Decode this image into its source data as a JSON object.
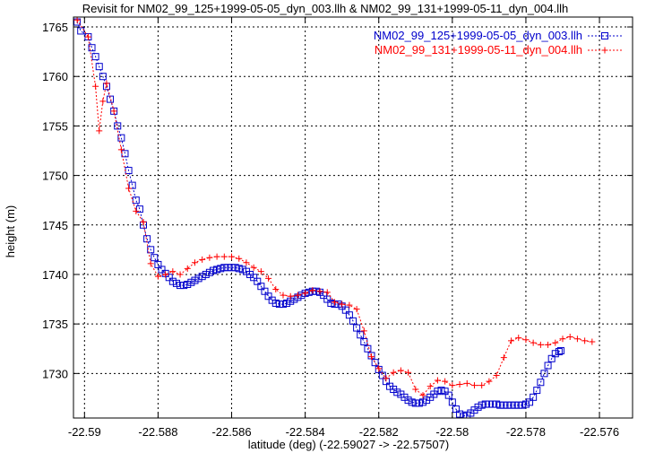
{
  "chart_data": {
    "type": "line",
    "title": "Revisit for NM02_99_125+1999-05-05_dyn_003.llh & NM02_99_131+1999-05-11_dyn_004.llh",
    "xlabel": "latitude (deg) (-22.59027 -> -22.57507)",
    "ylabel": "height (m)",
    "xlim": [
      -22.5903,
      -22.5751
    ],
    "ylim": [
      1725.5,
      1766
    ],
    "xticks": [
      -22.59,
      -22.588,
      -22.586,
      -22.584,
      -22.582,
      -22.58,
      -22.578,
      -22.576
    ],
    "xtick_labels": [
      "-22.59",
      "-22.588",
      "-22.586",
      "-22.584",
      "-22.582",
      "-22.58",
      "-22.578",
      "-22.576"
    ],
    "yticks": [
      1730,
      1735,
      1740,
      1745,
      1750,
      1755,
      1760,
      1765
    ],
    "ytick_labels": [
      "1730",
      "1735",
      "1740",
      "1745",
      "1750",
      "1755",
      "1760",
      "1765"
    ],
    "grid": true,
    "legend_position": "top-right",
    "series": [
      {
        "name": "NM02_99_125+1999-05-05_dyn_003.llh",
        "color": "#0000cc",
        "marker": "square",
        "points": [
          [
            -22.5902,
            1765.5
          ],
          [
            -22.5901,
            1764.6
          ],
          [
            -22.5899,
            1764
          ],
          [
            -22.5898,
            1762.9
          ],
          [
            -22.5897,
            1762
          ],
          [
            -22.5896,
            1761
          ],
          [
            -22.5895,
            1760
          ],
          [
            -22.5894,
            1759
          ],
          [
            -22.5893,
            1757.7
          ],
          [
            -22.5892,
            1756.5
          ],
          [
            -22.5891,
            1755
          ],
          [
            -22.589,
            1753.8
          ],
          [
            -22.5889,
            1752.2
          ],
          [
            -22.5888,
            1750.5
          ],
          [
            -22.5887,
            1749
          ],
          [
            -22.5886,
            1747.5
          ],
          [
            -22.5885,
            1746.6
          ],
          [
            -22.5884,
            1745
          ],
          [
            -22.5883,
            1743.6
          ],
          [
            -22.5882,
            1742.5
          ],
          [
            -22.5881,
            1741.7
          ],
          [
            -22.588,
            1741
          ],
          [
            -22.5879,
            1740.5
          ],
          [
            -22.5878,
            1740.1
          ],
          [
            -22.5877,
            1739.7
          ],
          [
            -22.5876,
            1739.3
          ],
          [
            -22.5875,
            1739.1
          ],
          [
            -22.5874,
            1738.9
          ],
          [
            -22.5873,
            1738.9
          ],
          [
            -22.5872,
            1739
          ],
          [
            -22.5871,
            1739.2
          ],
          [
            -22.587,
            1739.4
          ],
          [
            -22.5869,
            1739.6
          ],
          [
            -22.5868,
            1739.8
          ],
          [
            -22.5867,
            1740
          ],
          [
            -22.5866,
            1740.2
          ],
          [
            -22.5865,
            1740.4
          ],
          [
            -22.5864,
            1740.5
          ],
          [
            -22.5863,
            1740.6
          ],
          [
            -22.5862,
            1740.7
          ],
          [
            -22.5861,
            1740.7
          ],
          [
            -22.586,
            1740.7
          ],
          [
            -22.5859,
            1740.7
          ],
          [
            -22.5858,
            1740.6
          ],
          [
            -22.5857,
            1740.5
          ],
          [
            -22.5856,
            1740.3
          ],
          [
            -22.5855,
            1740
          ],
          [
            -22.5854,
            1739.7
          ],
          [
            -22.5853,
            1739.3
          ],
          [
            -22.5852,
            1738.8
          ],
          [
            -22.5851,
            1738.3
          ],
          [
            -22.585,
            1737.8
          ],
          [
            -22.5849,
            1737.4
          ],
          [
            -22.5848,
            1737.1
          ],
          [
            -22.5847,
            1737
          ],
          [
            -22.5846,
            1737
          ],
          [
            -22.5845,
            1737.1
          ],
          [
            -22.5844,
            1737.3
          ],
          [
            -22.5843,
            1737.5
          ],
          [
            -22.5842,
            1737.7
          ],
          [
            -22.5841,
            1737.9
          ],
          [
            -22.584,
            1738.1
          ],
          [
            -22.5839,
            1738.2
          ],
          [
            -22.5838,
            1738.3
          ],
          [
            -22.5837,
            1738.3
          ],
          [
            -22.5836,
            1738.2
          ],
          [
            -22.5835,
            1737.9
          ],
          [
            -22.5834,
            1737.5
          ],
          [
            -22.5833,
            1737.1
          ],
          [
            -22.5832,
            1737
          ],
          [
            -22.5831,
            1737
          ],
          [
            -22.583,
            1736.8
          ],
          [
            -22.5829,
            1736.4
          ],
          [
            -22.5828,
            1735.9
          ],
          [
            -22.5827,
            1735.3
          ],
          [
            -22.5826,
            1734.6
          ],
          [
            -22.5825,
            1733.9
          ],
          [
            -22.5824,
            1733.2
          ],
          [
            -22.5823,
            1732.5
          ],
          [
            -22.5822,
            1731.8
          ],
          [
            -22.5821,
            1731.1
          ],
          [
            -22.582,
            1730.4
          ],
          [
            -22.5819,
            1729.8
          ],
          [
            -22.5818,
            1729.2
          ],
          [
            -22.5817,
            1728.7
          ],
          [
            -22.5816,
            1728.4
          ],
          [
            -22.5815,
            1728.1
          ],
          [
            -22.5814,
            1727.9
          ],
          [
            -22.5813,
            1727.6
          ],
          [
            -22.5812,
            1727.3
          ],
          [
            -22.5811,
            1727.1
          ],
          [
            -22.581,
            1727
          ],
          [
            -22.5809,
            1727
          ],
          [
            -22.5808,
            1727.1
          ],
          [
            -22.5807,
            1727.3
          ],
          [
            -22.5806,
            1727.6
          ],
          [
            -22.5805,
            1727.9
          ],
          [
            -22.5804,
            1728.2
          ],
          [
            -22.5803,
            1728.3
          ],
          [
            -22.5802,
            1728.2
          ],
          [
            -22.5801,
            1727.8
          ],
          [
            -22.58,
            1727.1
          ],
          [
            -22.5799,
            1726.4
          ],
          [
            -22.5798,
            1725.9
          ],
          [
            -22.5797,
            1725.7
          ],
          [
            -22.5796,
            1725.8
          ],
          [
            -22.5795,
            1726
          ],
          [
            -22.5794,
            1726.3
          ],
          [
            -22.5793,
            1726.6
          ],
          [
            -22.5792,
            1726.8
          ],
          [
            -22.5791,
            1726.9
          ],
          [
            -22.579,
            1726.9
          ],
          [
            -22.5789,
            1726.9
          ],
          [
            -22.5788,
            1726.9
          ],
          [
            -22.5787,
            1726.8
          ],
          [
            -22.5786,
            1726.8
          ],
          [
            -22.5785,
            1726.8
          ],
          [
            -22.5784,
            1726.8
          ],
          [
            -22.5783,
            1726.8
          ],
          [
            -22.5782,
            1726.8
          ],
          [
            -22.5781,
            1726.8
          ],
          [
            -22.578,
            1726.9
          ],
          [
            -22.5779,
            1727.1
          ],
          [
            -22.5778,
            1727.6
          ],
          [
            -22.5777,
            1728.3
          ],
          [
            -22.5776,
            1729.1
          ],
          [
            -22.5775,
            1730
          ],
          [
            -22.5774,
            1730.8
          ],
          [
            -22.5773,
            1731.5
          ],
          [
            -22.5772,
            1732
          ],
          [
            -22.5771,
            1732.2
          ],
          [
            -22.57705,
            1732.3
          ]
        ]
      },
      {
        "name": "NM02_99_131+1999-05-11_dyn_004.llh",
        "color": "#ff0000",
        "marker": "plus",
        "points": [
          [
            -22.5902,
            1765.7
          ],
          [
            -22.5899,
            1764
          ],
          [
            -22.5897,
            1759
          ],
          [
            -22.5896,
            1754.5
          ],
          [
            -22.5895,
            1757.5
          ],
          [
            -22.5894,
            1759.3
          ],
          [
            -22.5892,
            1756.5
          ],
          [
            -22.589,
            1752.6
          ],
          [
            -22.5888,
            1748.7
          ],
          [
            -22.5886,
            1746.4
          ],
          [
            -22.5884,
            1745.3
          ],
          [
            -22.5882,
            1741.1
          ],
          [
            -22.588,
            1739.8
          ],
          [
            -22.5878,
            1740
          ],
          [
            -22.5876,
            1740.3
          ],
          [
            -22.5874,
            1740
          ],
          [
            -22.5872,
            1740.6
          ],
          [
            -22.587,
            1741.2
          ],
          [
            -22.5868,
            1741.5
          ],
          [
            -22.5866,
            1741.7
          ],
          [
            -22.5864,
            1741.8
          ],
          [
            -22.5862,
            1741.8
          ],
          [
            -22.586,
            1741.8
          ],
          [
            -22.5858,
            1741.6
          ],
          [
            -22.5856,
            1741.2
          ],
          [
            -22.5854,
            1740.7
          ],
          [
            -22.5852,
            1740.3
          ],
          [
            -22.585,
            1739.6
          ],
          [
            -22.5848,
            1738.5
          ],
          [
            -22.5846,
            1737.9
          ],
          [
            -22.5844,
            1737.8
          ],
          [
            -22.5842,
            1737.9
          ],
          [
            -22.584,
            1738.1
          ],
          [
            -22.5838,
            1738.4
          ],
          [
            -22.5836,
            1738.3
          ],
          [
            -22.5834,
            1738.2
          ],
          [
            -22.5832,
            1737.2
          ],
          [
            -22.583,
            1737
          ],
          [
            -22.5828,
            1736.9
          ],
          [
            -22.5826,
            1736.5
          ],
          [
            -22.5824,
            1734.3
          ],
          [
            -22.5822,
            1731.7
          ],
          [
            -22.582,
            1730.5
          ],
          [
            -22.5818,
            1729.5
          ],
          [
            -22.5816,
            1730.1
          ],
          [
            -22.5814,
            1730.3
          ],
          [
            -22.5812,
            1730.1
          ],
          [
            -22.581,
            1728.4
          ],
          [
            -22.5808,
            1727.8
          ],
          [
            -22.5806,
            1728.7
          ],
          [
            -22.5804,
            1729.3
          ],
          [
            -22.5802,
            1729.2
          ],
          [
            -22.58,
            1728.8
          ],
          [
            -22.5798,
            1728.9
          ],
          [
            -22.5796,
            1729
          ],
          [
            -22.5794,
            1728.8
          ],
          [
            -22.5792,
            1728.8
          ],
          [
            -22.579,
            1729.2
          ],
          [
            -22.5788,
            1729.8
          ],
          [
            -22.5786,
            1731.6
          ],
          [
            -22.5784,
            1733.3
          ],
          [
            -22.5782,
            1733.6
          ],
          [
            -22.578,
            1733.4
          ],
          [
            -22.5778,
            1733.1
          ],
          [
            -22.5776,
            1732.9
          ],
          [
            -22.5774,
            1732.9
          ],
          [
            -22.5772,
            1733.1
          ],
          [
            -22.577,
            1733.5
          ],
          [
            -22.5768,
            1733.7
          ],
          [
            -22.5766,
            1733.5
          ],
          [
            -22.5764,
            1733.3
          ],
          [
            -22.5762,
            1733.2
          ]
        ]
      }
    ]
  }
}
